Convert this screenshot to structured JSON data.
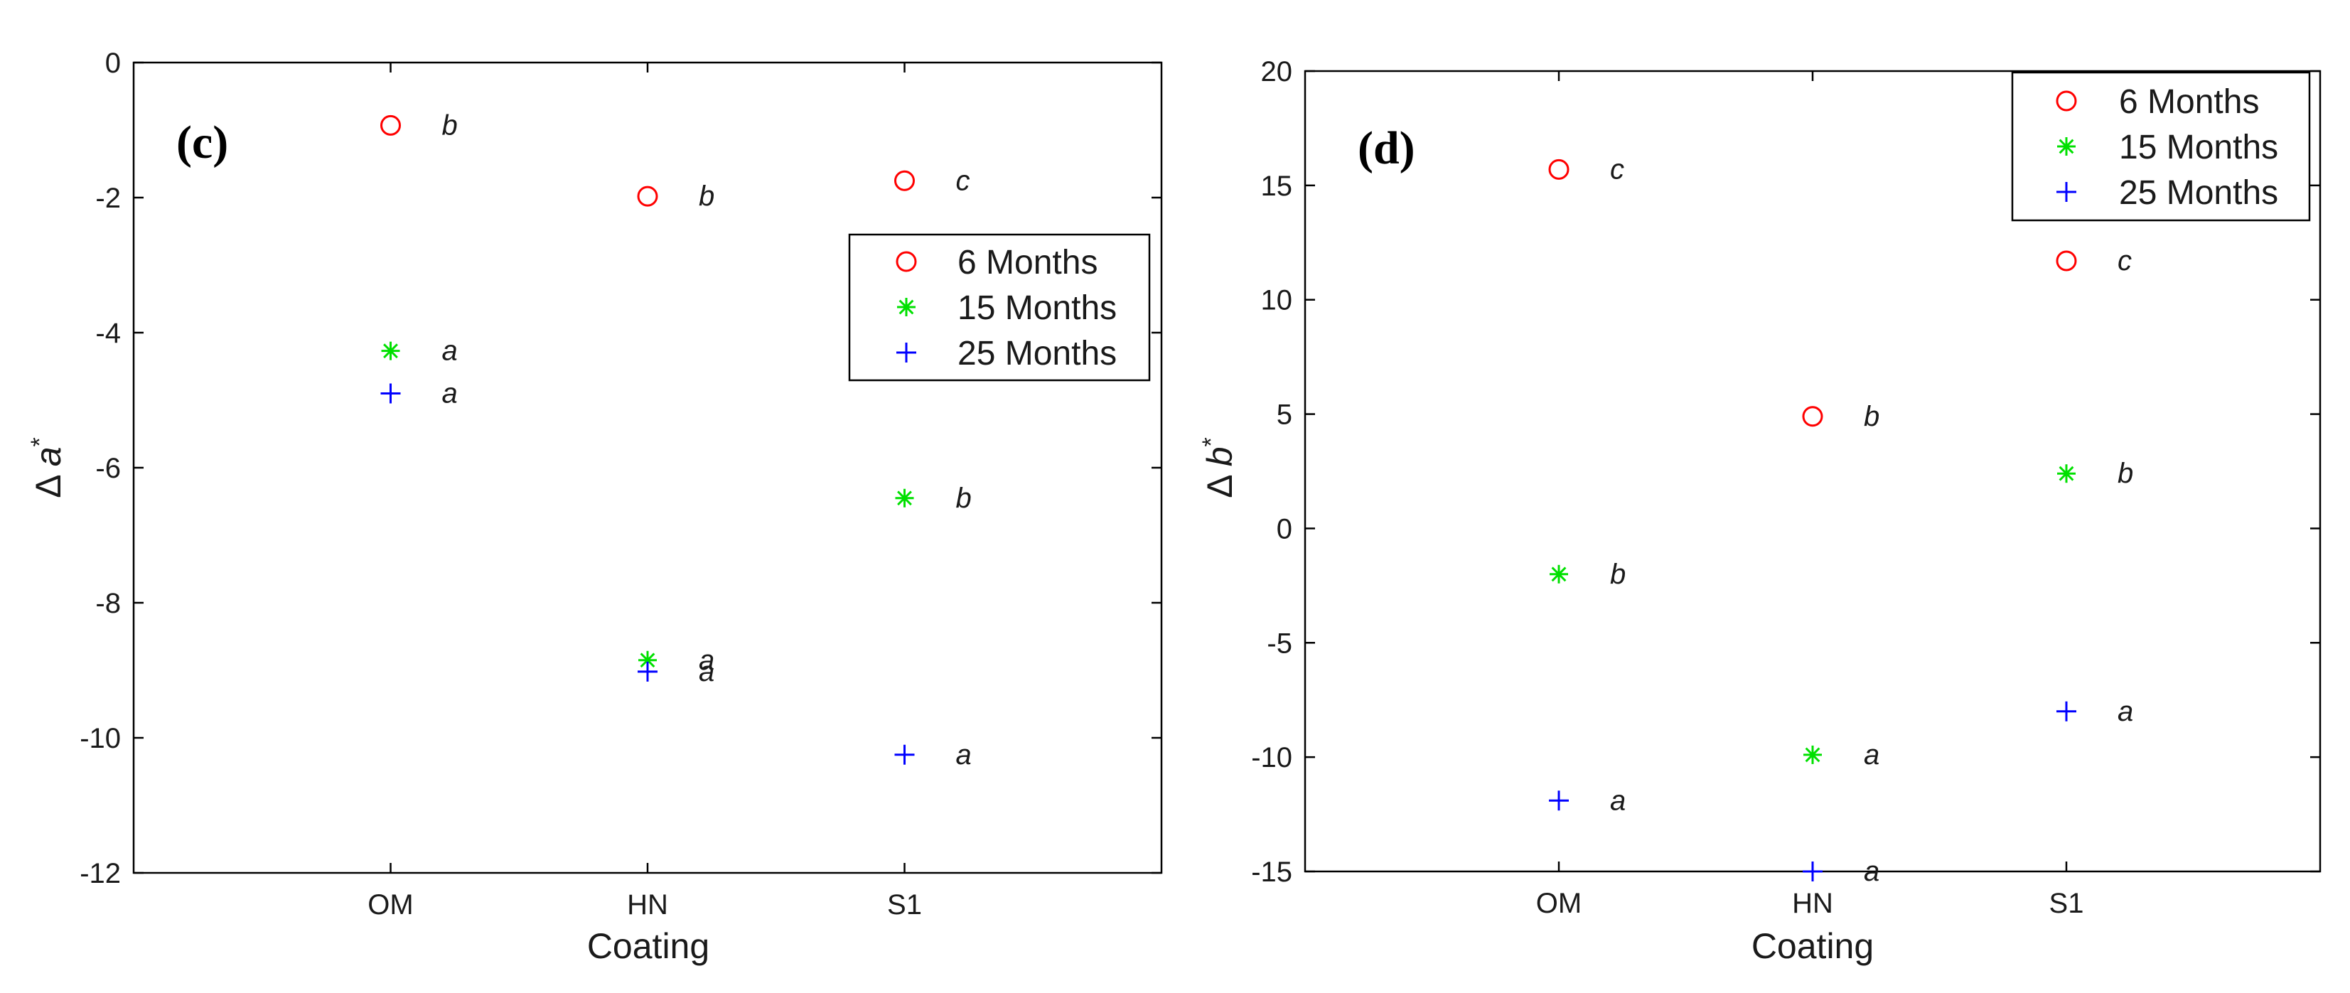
{
  "figure": {
    "background": "#ffffff",
    "axis_color": "#000000"
  },
  "series_styles": [
    {
      "name": "6 Months",
      "marker": "circle-icon",
      "color": "#ff0000"
    },
    {
      "name": "15 Months",
      "marker": "asterisk-icon",
      "color": "#00e000"
    },
    {
      "name": "25 Months",
      "marker": "plus-icon",
      "color": "#0000ff"
    }
  ],
  "chart_data": [
    {
      "type": "scatter",
      "panel_label": "(c)",
      "title": "",
      "xlabel": "Coating",
      "ylabel": "Δ a*",
      "ylabel_symbol": "Δ",
      "ylabel_var": "a",
      "ylabel_sup": "*",
      "categories": [
        "OM",
        "HN",
        "S1"
      ],
      "xlim": [
        0,
        4
      ],
      "ylim": [
        -12,
        0
      ],
      "yticks": [
        0,
        -2,
        -4,
        -6,
        -8,
        -10,
        -12
      ],
      "ytick_labels": [
        "0",
        "-2",
        "-4",
        "-6",
        "-8",
        "-10",
        "-12"
      ],
      "legend_position": "upper-right (center)",
      "series": [
        {
          "name": "6 Months",
          "values": [
            -0.93,
            -1.98,
            -1.75
          ],
          "letters": [
            "b",
            "b",
            "c"
          ]
        },
        {
          "name": "15 Months",
          "values": [
            -4.27,
            -8.85,
            -6.45
          ],
          "letters": [
            "a",
            "a",
            "b"
          ]
        },
        {
          "name": "25 Months",
          "values": [
            -4.9,
            -9.02,
            -10.25
          ],
          "letters": [
            "a",
            "a",
            "a"
          ]
        }
      ]
    },
    {
      "type": "scatter",
      "panel_label": "(d)",
      "title": "",
      "xlabel": "Coating",
      "ylabel": "Δ b*",
      "ylabel_symbol": "Δ",
      "ylabel_var": "b",
      "ylabel_sup": "*",
      "categories": [
        "OM",
        "HN",
        "S1"
      ],
      "xlim": [
        0,
        4
      ],
      "ylim": [
        -15,
        20
      ],
      "yticks": [
        20,
        15,
        10,
        5,
        0,
        -5,
        -10,
        -15
      ],
      "ytick_labels": [
        "20",
        "15",
        "10",
        "5",
        "0",
        "-5",
        "-10",
        "-15"
      ],
      "legend_position": "top-right",
      "series": [
        {
          "name": "6 Months",
          "values": [
            15.7,
            4.9,
            11.7
          ],
          "letters": [
            "c",
            "b",
            "c"
          ]
        },
        {
          "name": "15 Months",
          "values": [
            -2.0,
            -9.9,
            2.4
          ],
          "letters": [
            "b",
            "a",
            "b"
          ]
        },
        {
          "name": "25 Months",
          "values": [
            -11.9,
            -15.0,
            -8.0
          ],
          "letters": [
            "a",
            "a",
            "a"
          ]
        }
      ]
    }
  ]
}
